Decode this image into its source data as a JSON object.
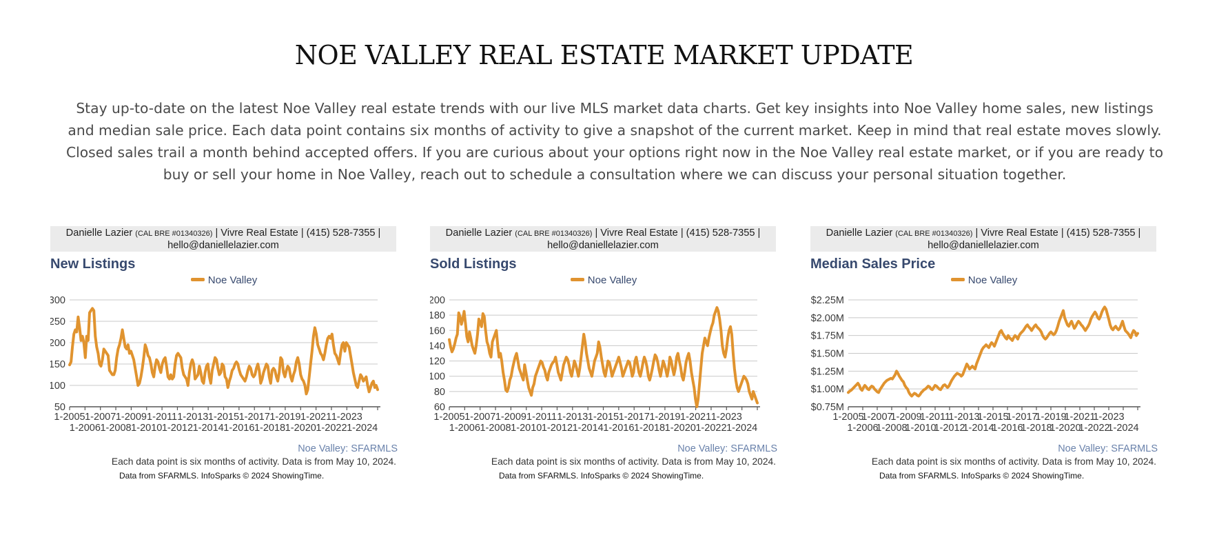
{
  "page": {
    "title": "NOE VALLEY REAL ESTATE MARKET UPDATE",
    "intro": "Stay up-to-date on the latest Noe Valley real estate trends with our live MLS market data charts. Get key insights into Noe Valley home sales, new listings and median sale price. Each data point contains six months of activity to give a snapshot of the current market. Keep in mind that real estate moves slowly. Closed sales trail a month behind accepted offers. If you are curious about your options right now in the Noe Valley real estate market, or if you are ready to buy or sell your home in Noe Valley, reach out to schedule a consultation where we can discuss your personal situation together."
  },
  "contact": {
    "name": "Danielle Lazier",
    "license": "(CAL BRE #01340326)",
    "rest": "| Vivre Real Estate | (415) 528-7355 |",
    "email": "hello@daniellelazier.com"
  },
  "footer": {
    "source": "Noe Valley: SFARMLS",
    "note": "Each data point is six months of activity. Data is from May 10, 2024.",
    "credit": "Data from SFARMLS. InfoSparks © 2024 ShowingTime."
  },
  "colors": {
    "line": "#e0932f",
    "title": "#37496e",
    "grid": "#c8c8c8"
  },
  "chart_data": [
    {
      "type": "line",
      "title": "New Listings",
      "series": [
        {
          "name": "Noe Valley",
          "values": [
            148,
            155,
            190,
            220,
            230,
            225,
            260,
            235,
            205,
            215,
            200,
            165,
            215,
            205,
            270,
            275,
            280,
            275,
            215,
            190,
            175,
            150,
            145,
            160,
            185,
            180,
            175,
            170,
            135,
            130,
            125,
            125,
            135,
            165,
            185,
            195,
            210,
            230,
            210,
            190,
            185,
            195,
            175,
            180,
            170,
            160,
            140,
            120,
            100,
            105,
            120,
            140,
            165,
            195,
            185,
            170,
            165,
            150,
            130,
            120,
            145,
            160,
            155,
            140,
            130,
            150,
            160,
            165,
            145,
            120,
            115,
            125,
            115,
            120,
            150,
            170,
            175,
            170,
            165,
            140,
            125,
            120,
            115,
            100,
            130,
            150,
            160,
            150,
            115,
            120,
            125,
            145,
            130,
            110,
            105,
            130,
            145,
            150,
            120,
            105,
            135,
            150,
            165,
            160,
            140,
            125,
            130,
            150,
            145,
            120,
            115,
            95,
            110,
            120,
            135,
            140,
            150,
            155,
            150,
            135,
            125,
            120,
            115,
            110,
            120,
            135,
            145,
            140,
            125,
            120,
            125,
            140,
            150,
            135,
            105,
            115,
            130,
            140,
            150,
            145,
            120,
            105,
            135,
            140,
            135,
            120,
            110,
            130,
            165,
            160,
            130,
            120,
            135,
            145,
            140,
            120,
            110,
            125,
            135,
            155,
            165,
            150,
            125,
            115,
            110,
            100,
            80,
            90,
            120,
            150,
            180,
            215,
            235,
            220,
            195,
            185,
            175,
            170,
            160,
            175,
            195,
            210,
            215,
            210,
            220,
            195,
            175,
            170,
            160,
            150,
            175,
            195,
            200,
            180,
            200,
            195,
            190,
            170,
            150,
            130,
            115,
            100,
            95,
            110,
            125,
            120,
            110,
            115,
            120,
            100,
            85,
            95,
            105,
            110,
            95,
            100,
            90
          ]
        }
      ],
      "xticks_upper": [
        "1-2005",
        "1-2007",
        "1-2009",
        "1-2011",
        "1-2013",
        "1-2015",
        "1-2017",
        "1-2019",
        "1-2021",
        "1-2023"
      ],
      "xticks_lower": [
        "1-2006",
        "1-2008",
        "1-2010",
        "1-2012",
        "1-2014",
        "1-2016",
        "1-2018",
        "1-2020",
        "1-2022",
        "1-2024"
      ],
      "y_ticks": [
        "300",
        "250",
        "200",
        "150",
        "100",
        "50"
      ],
      "ylim": [
        50,
        300
      ]
    },
    {
      "type": "line",
      "title": "Sold Listings",
      "series": [
        {
          "name": "Noe Valley",
          "values": [
            148,
            138,
            132,
            136,
            142,
            150,
            155,
            183,
            178,
            168,
            175,
            185,
            170,
            152,
            145,
            158,
            150,
            140,
            135,
            130,
            140,
            155,
            175,
            170,
            165,
            182,
            178,
            160,
            145,
            140,
            130,
            125,
            145,
            150,
            155,
            160,
            140,
            125,
            130,
            120,
            105,
            95,
            82,
            80,
            85,
            95,
            100,
            110,
            118,
            125,
            130,
            120,
            110,
            105,
            100,
            95,
            115,
            105,
            95,
            85,
            80,
            75,
            85,
            90,
            100,
            105,
            110,
            115,
            120,
            118,
            112,
            108,
            100,
            95,
            105,
            110,
            115,
            118,
            120,
            125,
            115,
            105,
            100,
            95,
            105,
            115,
            120,
            125,
            122,
            115,
            105,
            100,
            110,
            120,
            115,
            108,
            100,
            110,
            125,
            140,
            155,
            145,
            130,
            120,
            110,
            105,
            100,
            110,
            120,
            125,
            130,
            145,
            138,
            125,
            115,
            105,
            100,
            110,
            120,
            118,
            110,
            100,
            105,
            110,
            115,
            120,
            125,
            118,
            110,
            100,
            105,
            110,
            115,
            120,
            118,
            110,
            100,
            105,
            120,
            125,
            115,
            105,
            100,
            108,
            118,
            125,
            120,
            112,
            100,
            95,
            102,
            110,
            120,
            128,
            125,
            118,
            108,
            100,
            110,
            120,
            115,
            108,
            100,
            110,
            125,
            120,
            110,
            102,
            110,
            125,
            130,
            120,
            112,
            100,
            95,
            105,
            118,
            125,
            130,
            120,
            105,
            95,
            85,
            70,
            60,
            70,
            90,
            110,
            130,
            140,
            150,
            145,
            140,
            150,
            158,
            165,
            170,
            180,
            185,
            190,
            185,
            175,
            160,
            140,
            130,
            125,
            135,
            150,
            160,
            165,
            155,
            130,
            110,
            95,
            85,
            80,
            85,
            90,
            95,
            100,
            98,
            95,
            90,
            80,
            75,
            70,
            80,
            75,
            70,
            65
          ]
        }
      ],
      "xticks_upper": [
        "1-2005",
        "1-2007",
        "1-2009",
        "1-2011",
        "1-2013",
        "1-2015",
        "1-2017",
        "1-2019",
        "1-2021",
        "1-2023"
      ],
      "xticks_lower": [
        "1-2006",
        "1-2008",
        "1-2010",
        "1-2012",
        "1-2014",
        "1-2016",
        "1-2018",
        "1-2020",
        "1-2022",
        "1-2024"
      ],
      "y_ticks": [
        "200",
        "180",
        "160",
        "140",
        "120",
        "100",
        "80",
        "60"
      ],
      "ylim": [
        60,
        200
      ]
    },
    {
      "type": "line",
      "title": "Median Sales Price",
      "series": [
        {
          "name": "Noe Valley",
          "values": [
            0.95,
            0.97,
            0.98,
            1.0,
            1.02,
            1.04,
            1.06,
            1.08,
            1.05,
            1.0,
            0.98,
            1.02,
            1.05,
            1.03,
            1.0,
            0.99,
            1.02,
            1.04,
            1.03,
            1.0,
            0.98,
            0.96,
            0.95,
            0.99,
            1.02,
            1.05,
            1.08,
            1.1,
            1.12,
            1.13,
            1.14,
            1.15,
            1.14,
            1.17,
            1.2,
            1.25,
            1.22,
            1.18,
            1.15,
            1.12,
            1.1,
            1.05,
            1.02,
            1.0,
            0.95,
            0.92,
            0.9,
            0.92,
            0.94,
            0.93,
            0.91,
            0.9,
            0.92,
            0.95,
            0.97,
            0.99,
            1.0,
            1.02,
            1.04,
            1.03,
            1.0,
            0.99,
            1.02,
            1.05,
            1.04,
            1.02,
            1.0,
            0.99,
            1.02,
            1.05,
            1.06,
            1.04,
            1.02,
            1.04,
            1.08,
            1.12,
            1.15,
            1.18,
            1.2,
            1.22,
            1.21,
            1.2,
            1.18,
            1.2,
            1.25,
            1.3,
            1.35,
            1.32,
            1.28,
            1.3,
            1.32,
            1.3,
            1.28,
            1.35,
            1.4,
            1.45,
            1.5,
            1.55,
            1.58,
            1.6,
            1.62,
            1.6,
            1.58,
            1.62,
            1.65,
            1.63,
            1.6,
            1.65,
            1.7,
            1.75,
            1.8,
            1.82,
            1.78,
            1.75,
            1.72,
            1.7,
            1.75,
            1.72,
            1.7,
            1.68,
            1.72,
            1.75,
            1.73,
            1.7,
            1.75,
            1.78,
            1.8,
            1.82,
            1.85,
            1.88,
            1.9,
            1.87,
            1.85,
            1.82,
            1.85,
            1.88,
            1.9,
            1.87,
            1.85,
            1.83,
            1.8,
            1.75,
            1.72,
            1.7,
            1.72,
            1.75,
            1.78,
            1.8,
            1.78,
            1.76,
            1.78,
            1.82,
            1.88,
            1.95,
            2.0,
            2.05,
            2.1,
            2.0,
            1.95,
            1.9,
            1.88,
            1.92,
            1.95,
            1.9,
            1.85,
            1.88,
            1.92,
            1.95,
            1.93,
            1.9,
            1.88,
            1.85,
            1.82,
            1.85,
            1.88,
            1.92,
            1.98,
            2.02,
            2.05,
            2.08,
            2.05,
            2.0,
            1.98,
            2.02,
            2.08,
            2.12,
            2.15,
            2.12,
            2.05,
            1.98,
            1.9,
            1.85,
            1.83,
            1.86,
            1.88,
            1.85,
            1.83,
            1.85,
            1.9,
            1.95,
            1.88,
            1.82,
            1.8,
            1.78,
            1.75,
            1.72,
            1.78,
            1.82,
            1.8,
            1.75,
            1.78
          ]
        }
      ],
      "xticks_upper": [
        "1-2005",
        "1-2007",
        "1-2009",
        "1-2011",
        "1-2013",
        "1-2015",
        "1-2017",
        "1-2019",
        "1-2021",
        "1-2023"
      ],
      "xticks_lower": [
        "1-2006",
        "1-2008",
        "1-2010",
        "1-2012",
        "1-2014",
        "1-2016",
        "1-2018",
        "1-2020",
        "1-2022",
        "1-2024"
      ],
      "y_ticks": [
        "$2.25M",
        "$2.00M",
        "$1.75M",
        "$1.50M",
        "$1.25M",
        "$1.00M",
        "$0.75M"
      ],
      "ylim": [
        0.75,
        2.25
      ]
    }
  ]
}
